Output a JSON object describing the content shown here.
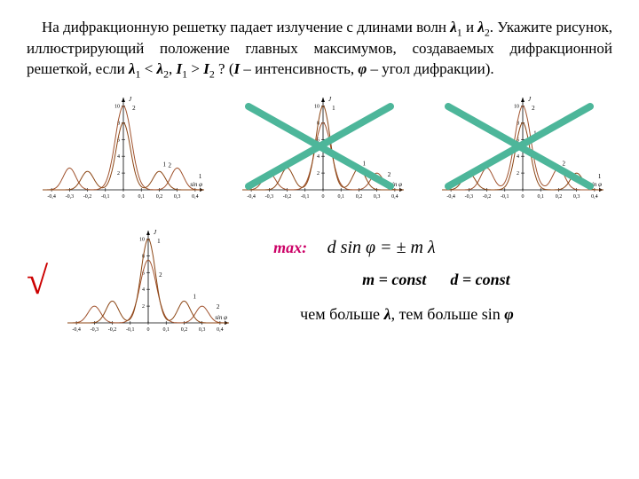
{
  "text": {
    "line1a": "На дифракционную решетку падает излучение с длинами волн",
    "l1": "λ",
    "sub1": "1",
    "and": " и ",
    "l2": "λ",
    "sub2": "2",
    "line2": ". Укажите рисунок, иллюстрирующий положение главных максимумов, создаваемых дифракционной решеткой, если ",
    "cond1a": "λ",
    "cond1s1": "1",
    "lt": " < ",
    "cond1b": "λ",
    "cond1s2": "2",
    "comma": ", ",
    "I1": "I",
    "Is1": "1",
    "gt": " > ",
    "I2": "I",
    "Is2": "2",
    "q": " ? (",
    "Idef": "I",
    "intens": " – интенсивность, ",
    "phi": "φ",
    "angle": " – угол дифракции)."
  },
  "formulas": {
    "max": "max:",
    "eq": "d sin φ = ± m λ",
    "m_const": "m = const",
    "d_const": "d = const",
    "conclusion_a": "чем больше ",
    "lambda": "λ",
    "conclusion_b": ", тем больше sin ",
    "phi2": "φ"
  },
  "chart": {
    "xlabel": "sin φ",
    "ylabel": "J",
    "xticks": [
      "-0,4",
      "-0,3",
      "-0,2",
      "-0,1",
      "0",
      "0,1",
      "0,2",
      "0,3",
      "0,4"
    ],
    "yticks": [
      "2",
      "4",
      "6",
      "8",
      "10"
    ],
    "series_label_1": "1",
    "series_label_2": "2",
    "colors": {
      "curve1": "#8b4513",
      "curve2": "#a0522d",
      "axis": "#000000",
      "cross": "#4db69a",
      "check": "#cc0000"
    },
    "cross_width": 8
  }
}
